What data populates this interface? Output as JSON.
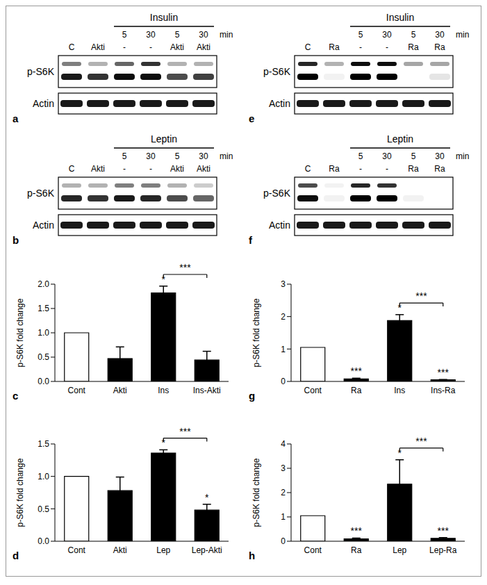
{
  "blots": [
    {
      "panel_label": "a",
      "treatment": "Insulin",
      "time_unit": "min",
      "times": [
        null,
        null,
        5,
        30,
        5,
        30
      ],
      "agents": [
        "C",
        "Akti",
        "-",
        "-",
        "Akti",
        "Akti"
      ],
      "rows": [
        {
          "label": "p-S6K",
          "upper": [
            0.5,
            0.3,
            0.6,
            0.8,
            0.3,
            0.3
          ],
          "lower": [
            0.9,
            0.8,
            0.95,
            0.95,
            0.7,
            0.75
          ]
        },
        {
          "label": "Actin",
          "band": [
            0.9,
            0.9,
            0.9,
            0.9,
            0.9,
            0.9
          ]
        }
      ]
    },
    {
      "panel_label": "b",
      "treatment": "Leptin",
      "time_unit": "min",
      "times": [
        null,
        null,
        5,
        30,
        5,
        30
      ],
      "agents": [
        "C",
        "Akti",
        "-",
        "-",
        "Akti",
        "Akti"
      ],
      "rows": [
        {
          "label": "p-S6K",
          "upper": [
            0.3,
            0.3,
            0.5,
            0.5,
            0.3,
            0.2
          ],
          "lower": [
            0.85,
            0.8,
            0.9,
            0.85,
            0.7,
            0.6
          ]
        },
        {
          "label": "Actin",
          "band": [
            0.9,
            0.9,
            0.9,
            0.9,
            0.9,
            0.9
          ]
        }
      ]
    },
    {
      "panel_label": "e",
      "treatment": "Insulin",
      "time_unit": "min",
      "times": [
        null,
        null,
        5,
        30,
        5,
        30
      ],
      "agents": [
        "C",
        "Ra",
        "-",
        "-",
        "Ra",
        "Ra"
      ],
      "rows": [
        {
          "label": "p-S6K",
          "upper": [
            0.85,
            0.3,
            0.95,
            0.95,
            0.35,
            0.35
          ],
          "lower": [
            1,
            0.05,
            1,
            1,
            0,
            0.1
          ]
        },
        {
          "label": "Actin",
          "band": [
            0.9,
            0.9,
            0.9,
            0.9,
            0.9,
            0.9
          ]
        }
      ]
    },
    {
      "panel_label": "f",
      "treatment": "Leptin",
      "time_unit": "min",
      "times": [
        null,
        null,
        5,
        30,
        5,
        30
      ],
      "agents": [
        "C",
        "Ra",
        "-",
        "-",
        "Ra",
        "Ra"
      ],
      "rows": [
        {
          "label": "p-S6K",
          "upper": [
            0.7,
            0.05,
            0.85,
            0.8,
            0,
            0
          ],
          "lower": [
            0.95,
            0.05,
            1,
            1,
            0.05,
            0
          ]
        },
        {
          "label": "Actin",
          "band": [
            0.9,
            0.9,
            0.9,
            0.9,
            0.9,
            0.9
          ]
        }
      ]
    }
  ],
  "chart_data": [
    {
      "type": "bar",
      "panel_label": "c",
      "y_label": "p-S6K fold change",
      "categories": [
        "Cont",
        "Akti",
        "Ins",
        "Ins-Akti"
      ],
      "values": [
        1,
        0.47,
        1.82,
        0.44
      ],
      "errors": [
        0,
        0.24,
        0.14,
        0.18
      ],
      "colors": [
        "#ffffff",
        "#000000",
        "#000000",
        "#000000"
      ],
      "ylim": [
        0,
        2
      ],
      "yticks": [
        {
          "value": 0,
          "label": "0.0"
        },
        {
          "value": 0.5,
          "label": "0.5"
        },
        {
          "value": 1,
          "label": "1.0"
        },
        {
          "value": 1.5,
          "label": "1.5"
        },
        {
          "value": 2,
          "label": "2.0"
        }
      ],
      "significance": [
        null,
        null,
        "*",
        null
      ],
      "brackets": [
        {
          "from": "Ins",
          "to": "Ins-Akti",
          "label": "***"
        }
      ]
    },
    {
      "type": "bar",
      "panel_label": "d",
      "y_label": "p-S6K fold change",
      "categories": [
        "Cont",
        "Akti",
        "Lep",
        "Lep-Akti"
      ],
      "values": [
        1,
        0.78,
        1.36,
        0.48
      ],
      "errors": [
        0,
        0.21,
        0.05,
        0.09
      ],
      "colors": [
        "#ffffff",
        "#000000",
        "#000000",
        "#000000"
      ],
      "ylim": [
        0,
        1.5
      ],
      "yticks": [
        {
          "value": 0,
          "label": "0.0"
        },
        {
          "value": 0.5,
          "label": "0.5"
        },
        {
          "value": 1,
          "label": "1.0"
        },
        {
          "value": 1.5,
          "label": "1.5"
        }
      ],
      "significance": [
        null,
        null,
        "*",
        "*"
      ],
      "brackets": [
        {
          "from": "Lep",
          "to": "Lep-Akti",
          "label": "***"
        }
      ]
    },
    {
      "type": "bar",
      "panel_label": "g",
      "y_label": "p-S6K fold change",
      "categories": [
        "Cont",
        "Ra",
        "Ins",
        "Ins-Ra"
      ],
      "values": [
        1.05,
        0.08,
        1.88,
        0.05
      ],
      "errors": [
        0,
        0.02,
        0.18,
        0.01
      ],
      "colors": [
        "#ffffff",
        "#000000",
        "#000000",
        "#000000"
      ],
      "ylim": [
        0,
        3
      ],
      "yticks": [
        0,
        1,
        2,
        3
      ],
      "significance": [
        null,
        "***",
        "*",
        "***"
      ],
      "brackets": [
        {
          "from": "Ins",
          "to": "Ins-Ra",
          "label": "***"
        }
      ]
    },
    {
      "type": "bar",
      "panel_label": "h",
      "y_label": "p-S6K fold change",
      "categories": [
        "Cont",
        "Ra",
        "Lep",
        "Lep-Ra"
      ],
      "values": [
        1.05,
        0.1,
        2.35,
        0.12
      ],
      "errors": [
        0,
        0.03,
        1.0,
        0.03
      ],
      "colors": [
        "#ffffff",
        "#000000",
        "#000000",
        "#000000"
      ],
      "ylim": [
        0,
        4
      ],
      "yticks": [
        0,
        1,
        2,
        3,
        4
      ],
      "significance": [
        null,
        "***",
        "*",
        "***"
      ],
      "brackets": [
        {
          "from": "Lep",
          "to": "Lep-Ra",
          "label": "***"
        }
      ]
    }
  ]
}
